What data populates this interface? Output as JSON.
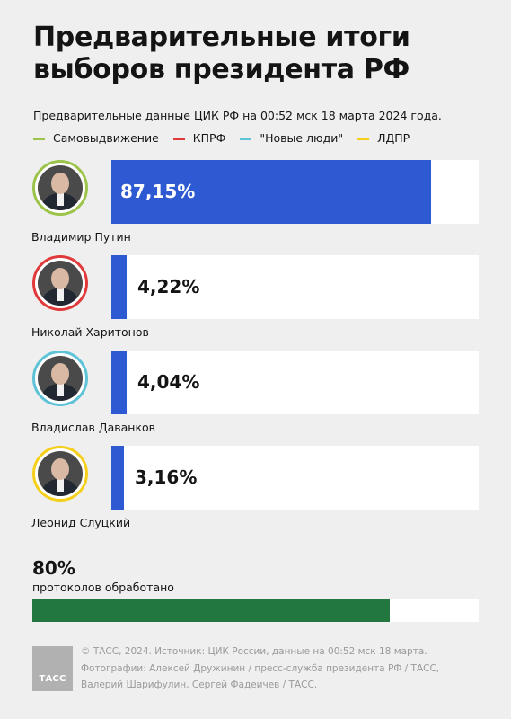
{
  "title": "Предварительные итоги выборов президента РФ",
  "subtitle": "Предварительные данные ЦИК РФ на 00:52 мск 18 марта 2024 года.",
  "legend": [
    {
      "label": "Самовыдвижение",
      "color": "#9dc44a"
    },
    {
      "label": "КПРФ",
      "color": "#e03a3a"
    },
    {
      "label": "\"Новые люди\"",
      "color": "#5ec3d6"
    },
    {
      "label": "ЛДПР",
      "color": "#f5cf1a"
    }
  ],
  "chart_data": {
    "type": "bar",
    "orientation": "horizontal",
    "categories": [
      "Владимир Путин",
      "Николай Харитонов",
      "Владислав Даванков",
      "Леонид Слуцкий"
    ],
    "values": [
      87.15,
      4.22,
      4.04,
      3.16
    ],
    "value_labels": [
      "87,15%",
      "4,22%",
      "4,04%",
      "3,16%"
    ],
    "parties": [
      "Самовыдвижение",
      "КПРФ",
      "\"Новые люди\"",
      "ЛДПР"
    ],
    "party_colors": [
      "#9dc44a",
      "#e03a3a",
      "#5ec3d6",
      "#f5cf1a"
    ],
    "bar_color": "#2d59d3",
    "xlim": [
      0,
      100
    ]
  },
  "processed": {
    "value": "80%",
    "fraction": 0.8,
    "label": "протоколов обработано",
    "color": "#227741"
  },
  "footer": {
    "logo_text": "ТАСС",
    "lines": [
      "© ТАСС, 2024. Источник: ЦИК России, данные на 00:52 мск 18 марта.",
      "Фотографии: Алексей Дружинин / пресс-служба президента РФ / ТАСС,",
      "Валерий Шарифулин, Сергей Фадеичев / ТАСС."
    ]
  }
}
